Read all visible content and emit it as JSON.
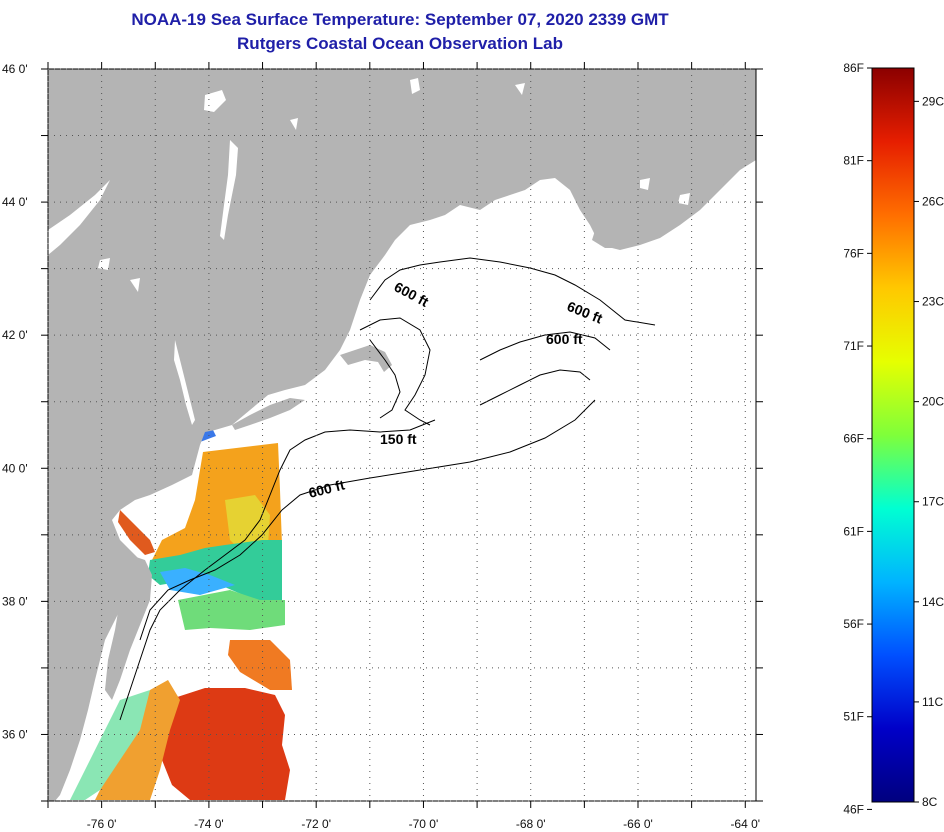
{
  "title": {
    "line1": "NOAA-19 Sea Surface Temperature:  September 07, 2020 2339 GMT",
    "line2": "Rutgers Coastal Ocean Observation Lab"
  },
  "map": {
    "lat_ticks": [
      {
        "value": 46,
        "label": "46 0'"
      },
      {
        "value": 44,
        "label": "44 0'"
      },
      {
        "value": 42,
        "label": "42 0'"
      },
      {
        "value": 40,
        "label": "40 0'"
      },
      {
        "value": 38,
        "label": "38 0'"
      },
      {
        "value": 36,
        "label": "36 0'"
      }
    ],
    "lon_ticks": [
      {
        "value": -76,
        "label": "-76 0'"
      },
      {
        "value": -74,
        "label": "-74 0'"
      },
      {
        "value": -72,
        "label": "-72 0'"
      },
      {
        "value": -70,
        "label": "-70 0'"
      },
      {
        "value": -68,
        "label": "-68 0'"
      },
      {
        "value": -66,
        "label": "-66 0'"
      },
      {
        "value": -64,
        "label": "-64 0'"
      }
    ],
    "lon_range": [
      -77,
      -63.8
    ],
    "lat_range": [
      35,
      46
    ],
    "contour_labels": {
      "c600a": "600 ft",
      "c600b": "600 ft",
      "c600c": "600 ft",
      "c150": "150 ft",
      "c600d": "600 ft"
    },
    "colors": {
      "land": "#b4b4b4",
      "water": "#ffffff",
      "grid": "#555555"
    }
  },
  "colorbar": {
    "f_labels": [
      "86F",
      "81F",
      "76F",
      "71F",
      "66F",
      "61F",
      "56F",
      "51F",
      "46F"
    ],
    "c_labels": [
      "29C",
      "26C",
      "23C",
      "20C",
      "17C",
      "14C",
      "11C",
      "8C"
    ],
    "min_c": 8,
    "max_c": 30,
    "gradient": [
      "#8b0000",
      "#e61e00",
      "#ff6e00",
      "#ffc800",
      "#e6ff00",
      "#7fff3a",
      "#00ffd2",
      "#00b4ff",
      "#0050ff",
      "#0000c8",
      "#00007f"
    ]
  }
}
